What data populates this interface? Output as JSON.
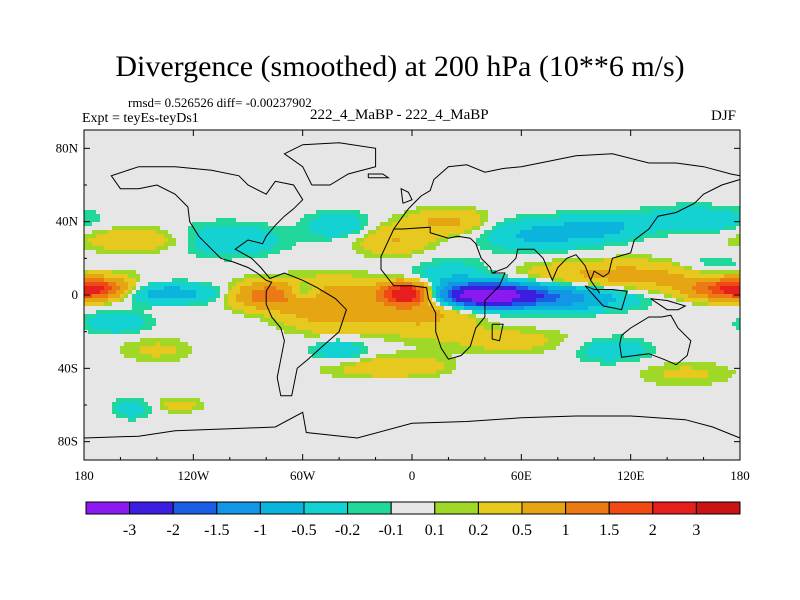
{
  "chart_data": {
    "type": "heatmap",
    "title": "Divergence (smoothed) at 200 hPa (10**6 m/s)",
    "stats_text": "rmsd= 0.526526 diff= -0.00237902",
    "experiment_text": "Expt = teyEs-teyDs1",
    "cases_text": "222_4_MaBP - 222_4_MaBP",
    "season": "DJF",
    "xlim": [
      -180,
      180
    ],
    "ylim": [
      -90,
      90
    ],
    "x_ticks": [
      {
        "value": -180,
        "label": "180"
      },
      {
        "value": -120,
        "label": "120W"
      },
      {
        "value": -60,
        "label": "60W"
      },
      {
        "value": 0,
        "label": "0"
      },
      {
        "value": 60,
        "label": "60E"
      },
      {
        "value": 120,
        "label": "120E"
      },
      {
        "value": 180,
        "label": "180"
      }
    ],
    "y_ticks": [
      {
        "value": 80,
        "label": "80N"
      },
      {
        "value": 40,
        "label": "40N"
      },
      {
        "value": 0,
        "label": "0"
      },
      {
        "value": -40,
        "label": "40S"
      },
      {
        "value": -80,
        "label": "80S"
      }
    ],
    "contour_levels": [
      -3,
      -2,
      -1.5,
      -1,
      -0.5,
      -0.2,
      -0.1,
      0.1,
      0.2,
      0.5,
      1,
      1.5,
      2,
      3
    ],
    "colorbar_labels": [
      "-3",
      "-2",
      "-1.5",
      "-1",
      "-0.5",
      "-0.2",
      "-0.1",
      "0.1",
      "0.2",
      "0.5",
      "1",
      "1.5",
      "2",
      "3"
    ],
    "colors": [
      "#8a1aef",
      "#3c1ee0",
      "#1a5ee6",
      "#1496e6",
      "#0ab4dc",
      "#14d2d2",
      "#22d79b",
      "#e6e6e6",
      "#a0d828",
      "#e6c81e",
      "#e6a614",
      "#ec7a14",
      "#f04a14",
      "#e61e1e",
      "#c81414"
    ],
    "anomalies": [
      {
        "lon": 40,
        "lat": 0,
        "amp": -3.3,
        "wlon": 16,
        "wlat": 4
      },
      {
        "lon": 70,
        "lat": -1,
        "amp": -1.6,
        "wlon": 30,
        "wlat": 5
      },
      {
        "lon": 20,
        "lat": 6,
        "amp": -0.8,
        "wlon": 20,
        "wlat": 8
      },
      {
        "lon": -3,
        "lat": 1,
        "amp": 2.6,
        "wlon": 9,
        "wlat": 4
      },
      {
        "lon": 5,
        "lat": -5,
        "amp": 0.9,
        "wlon": 22,
        "wlat": 10
      },
      {
        "lon": -80,
        "lat": 0,
        "amp": 1.3,
        "wlon": 14,
        "wlat": 5
      },
      {
        "lon": -47,
        "lat": -5,
        "amp": 0.9,
        "wlon": 18,
        "wlat": 9
      },
      {
        "lon": -172,
        "lat": 3,
        "amp": 1.7,
        "wlon": 12,
        "wlat": 4
      },
      {
        "lon": 170,
        "lat": 3,
        "amp": 1.4,
        "wlon": 14,
        "wlat": 4
      },
      {
        "lon": 120,
        "lat": 10,
        "amp": 0.7,
        "wlon": 45,
        "wlat": 6
      },
      {
        "lon": -135,
        "lat": 1,
        "amp": -0.7,
        "wlon": 25,
        "wlat": 4
      },
      {
        "lon": -60,
        "lat": 1,
        "amp": -0.8,
        "wlon": 7,
        "wlat": 4
      },
      {
        "lon": -145,
        "lat": 30,
        "amp": 0.5,
        "wlon": 25,
        "wlat": 5
      },
      {
        "lon": -105,
        "lat": 30,
        "amp": -0.6,
        "wlon": 22,
        "wlat": 6
      },
      {
        "lon": -40,
        "lat": 38,
        "amp": -0.5,
        "wlon": 12,
        "wlat": 5
      },
      {
        "lon": -10,
        "lat": 30,
        "amp": 0.5,
        "wlon": 15,
        "wlat": 6
      },
      {
        "lon": 20,
        "lat": 40,
        "amp": 0.6,
        "wlon": 15,
        "wlat": 5
      },
      {
        "lon": 70,
        "lat": 33,
        "amp": -0.6,
        "wlon": 22,
        "wlat": 6
      },
      {
        "lon": 105,
        "lat": 37,
        "amp": -0.55,
        "wlon": 15,
        "wlat": 5
      },
      {
        "lon": 155,
        "lat": 41,
        "amp": -0.5,
        "wlon": 20,
        "wlat": 5
      },
      {
        "lon": 165,
        "lat": 15,
        "amp": -0.4,
        "wlon": 15,
        "wlat": 5
      },
      {
        "lon": -162,
        "lat": -15,
        "amp": -0.5,
        "wlon": 12,
        "wlat": 4
      },
      {
        "lon": -40,
        "lat": -30,
        "amp": -0.5,
        "wlon": 10,
        "wlat": 4
      },
      {
        "lon": -20,
        "lat": -40,
        "amp": 0.3,
        "wlon": 22,
        "wlat": 4
      },
      {
        "lon": 55,
        "lat": -25,
        "amp": 0.3,
        "wlon": 25,
        "wlat": 5
      },
      {
        "lon": 110,
        "lat": -30,
        "amp": -0.4,
        "wlon": 15,
        "wlat": 5
      },
      {
        "lon": -140,
        "lat": -30,
        "amp": 0.25,
        "wlon": 15,
        "wlat": 5
      },
      {
        "lon": -153,
        "lat": -62,
        "amp": -0.35,
        "wlon": 8,
        "wlat": 4
      },
      {
        "lon": -128,
        "lat": -60,
        "amp": 0.3,
        "wlon": 10,
        "wlat": 3
      },
      {
        "lon": 0,
        "lat": -38,
        "amp": 0.25,
        "wlon": 15,
        "wlat": 4
      },
      {
        "lon": 150,
        "lat": -43,
        "amp": 0.25,
        "wlon": 20,
        "wlat": 5
      }
    ]
  },
  "coastline": [
    [
      [
        -150,
        58
      ],
      [
        -140,
        60
      ],
      [
        -130,
        55
      ],
      [
        -123,
        48
      ],
      [
        -122,
        40
      ],
      [
        -117,
        32
      ],
      [
        -110,
        25
      ],
      [
        -105,
        20
      ],
      [
        -98,
        18
      ],
      [
        -90,
        15
      ],
      [
        -85,
        12
      ],
      [
        -80,
        8
      ],
      [
        -77,
        7
      ],
      [
        -80,
        2
      ],
      [
        -80,
        -5
      ],
      [
        -77,
        -12
      ],
      [
        -72,
        -18
      ],
      [
        -70,
        -25
      ],
      [
        -72,
        -35
      ],
      [
        -74,
        -45
      ],
      [
        -72,
        -55
      ],
      [
        -66,
        -55
      ],
      [
        -63,
        -40
      ],
      [
        -57,
        -35
      ],
      [
        -48,
        -27
      ],
      [
        -40,
        -20
      ],
      [
        -36,
        -8
      ],
      [
        -42,
        -2
      ],
      [
        -52,
        4
      ],
      [
        -60,
        8
      ],
      [
        -70,
        12
      ],
      [
        -78,
        9
      ],
      [
        -83,
        15
      ],
      [
        -88,
        20
      ],
      [
        -97,
        25
      ],
      [
        -90,
        30
      ],
      [
        -82,
        28
      ],
      [
        -80,
        32
      ],
      [
        -75,
        38
      ],
      [
        -70,
        43
      ],
      [
        -65,
        47
      ],
      [
        -60,
        52
      ],
      [
        -65,
        60
      ],
      [
        -75,
        62
      ],
      [
        -80,
        55
      ],
      [
        -90,
        60
      ],
      [
        -95,
        65
      ],
      [
        -110,
        68
      ],
      [
        -130,
        70
      ],
      [
        -150,
        70
      ],
      [
        -165,
        65
      ],
      [
        -160,
        58
      ],
      [
        -150,
        58
      ]
    ],
    [
      [
        -55,
        60
      ],
      [
        -45,
        60
      ],
      [
        -35,
        66
      ],
      [
        -20,
        70
      ],
      [
        -20,
        80
      ],
      [
        -40,
        83
      ],
      [
        -60,
        82
      ],
      [
        -70,
        77
      ],
      [
        -60,
        70
      ],
      [
        -55,
        60
      ]
    ],
    [
      [
        -10,
        36
      ],
      [
        -5,
        43
      ],
      [
        -2,
        47
      ],
      [
        2,
        51
      ],
      [
        5,
        54
      ],
      [
        10,
        57
      ],
      [
        12,
        63
      ],
      [
        20,
        70
      ],
      [
        30,
        71
      ],
      [
        40,
        67
      ],
      [
        50,
        69
      ],
      [
        60,
        70
      ],
      [
        75,
        73
      ],
      [
        90,
        76
      ],
      [
        110,
        77
      ],
      [
        130,
        72
      ],
      [
        145,
        72
      ],
      [
        160,
        70
      ],
      [
        175,
        66
      ],
      [
        180,
        65
      ]
    ],
    [
      [
        180,
        63
      ],
      [
        170,
        60
      ],
      [
        160,
        55
      ],
      [
        155,
        50
      ],
      [
        145,
        45
      ],
      [
        135,
        43
      ],
      [
        130,
        36
      ],
      [
        122,
        30
      ],
      [
        120,
        23
      ],
      [
        110,
        20
      ],
      [
        108,
        12
      ],
      [
        105,
        10
      ],
      [
        100,
        13
      ],
      [
        98,
        8
      ],
      [
        103,
        1
      ],
      [
        98,
        8
      ],
      [
        95,
        16
      ],
      [
        90,
        22
      ],
      [
        85,
        20
      ],
      [
        80,
        15
      ],
      [
        77,
        8
      ],
      [
        72,
        20
      ],
      [
        67,
        25
      ],
      [
        58,
        25
      ],
      [
        57,
        20
      ],
      [
        52,
        15
      ],
      [
        44,
        12
      ],
      [
        43,
        15
      ],
      [
        38,
        20
      ],
      [
        35,
        28
      ],
      [
        32,
        31
      ],
      [
        25,
        32
      ],
      [
        20,
        31
      ],
      [
        10,
        34
      ],
      [
        10,
        37
      ],
      [
        -5,
        36
      ],
      [
        -10,
        36
      ]
    ],
    [
      [
        -10,
        36
      ],
      [
        -17,
        21
      ],
      [
        -17,
        14
      ],
      [
        -10,
        5
      ],
      [
        0,
        5
      ],
      [
        8,
        4
      ],
      [
        9,
        -2
      ],
      [
        13,
        -10
      ],
      [
        13,
        -20
      ],
      [
        16,
        -29
      ],
      [
        20,
        -35
      ],
      [
        27,
        -33
      ],
      [
        32,
        -28
      ],
      [
        35,
        -18
      ],
      [
        40,
        -12
      ],
      [
        40,
        -3
      ],
      [
        48,
        5
      ],
      [
        51,
        12
      ],
      [
        44,
        12
      ]
    ],
    [
      [
        44,
        -16
      ],
      [
        50,
        -16
      ],
      [
        48,
        -25
      ],
      [
        44,
        -24
      ],
      [
        44,
        -16
      ]
    ],
    [
      [
        115,
        -22
      ],
      [
        120,
        -18
      ],
      [
        130,
        -12
      ],
      [
        137,
        -12
      ],
      [
        142,
        -11
      ],
      [
        146,
        -18
      ],
      [
        153,
        -25
      ],
      [
        151,
        -33
      ],
      [
        145,
        -38
      ],
      [
        138,
        -35
      ],
      [
        130,
        -32
      ],
      [
        115,
        -34
      ],
      [
        114,
        -27
      ],
      [
        115,
        -22
      ]
    ],
    [
      [
        95,
        5
      ],
      [
        105,
        -6
      ],
      [
        110,
        -7
      ],
      [
        115,
        -8
      ],
      [
        118,
        2
      ],
      [
        110,
        3
      ],
      [
        100,
        3
      ],
      [
        95,
        5
      ]
    ],
    [
      [
        131,
        -2
      ],
      [
        140,
        -3
      ],
      [
        150,
        -6
      ],
      [
        146,
        -8
      ],
      [
        140,
        -8
      ],
      [
        131,
        -2
      ]
    ],
    [
      [
        -5,
        50
      ],
      [
        0,
        52
      ],
      [
        -2,
        56
      ],
      [
        -6,
        58
      ],
      [
        -5,
        50
      ]
    ],
    [
      [
        -24,
        64
      ],
      [
        -13,
        64
      ],
      [
        -16,
        66
      ],
      [
        -24,
        66
      ],
      [
        -24,
        64
      ]
    ],
    [
      [
        -180,
        -78
      ],
      [
        -150,
        -77
      ],
      [
        -130,
        -74
      ],
      [
        -100,
        -73
      ],
      [
        -75,
        -72
      ],
      [
        -60,
        -64
      ],
      [
        -58,
        -75
      ],
      [
        -30,
        -78
      ],
      [
        0,
        -70
      ],
      [
        30,
        -69
      ],
      [
        60,
        -67
      ],
      [
        90,
        -66
      ],
      [
        120,
        -66
      ],
      [
        150,
        -68
      ],
      [
        165,
        -72
      ],
      [
        180,
        -78
      ]
    ]
  ]
}
